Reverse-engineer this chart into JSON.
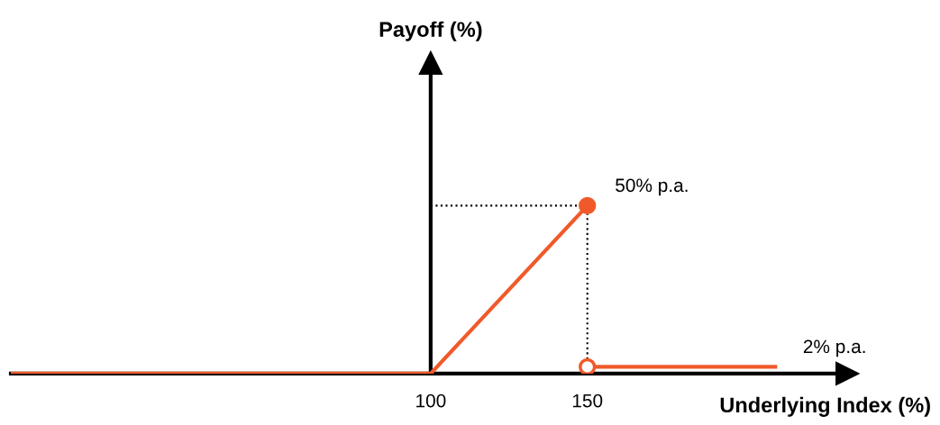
{
  "chart_data": {
    "type": "line",
    "xlabel": "Underlying Index (%)",
    "annotations": [
      "Payoff (%)"
    ],
    "xlim": [
      -34,
      233
    ],
    "xticks": [
      100,
      150
    ],
    "tick_labels": "x",
    "grid": false,
    "legend": false,
    "ref_lines": [
      {
        "axis": "x",
        "value": 100,
        "color": "#000000",
        "line_style": "solid"
      }
    ],
    "series": [
      {
        "color": "#f05a2a",
        "x": [
          -34,
          100,
          150
        ],
        "values": [
          0,
          0,
          50
        ],
        "marker": "none",
        "line_style": "solid"
      },
      {
        "color": "#f05a2a",
        "x": [
          150,
          210
        ],
        "values": [
          2,
          2
        ],
        "marker": "none",
        "line_style": "solid",
        "value_labels": [
          null,
          "2% p.a."
        ]
      },
      {
        "color": "#000000",
        "x": [
          100,
          150,
          150
        ],
        "values": [
          50,
          50,
          0
        ],
        "marker": "none",
        "line_style": "dotted"
      },
      {
        "type": "scatter",
        "color": "#f05a2a",
        "x": [
          150
        ],
        "values": [
          50
        ],
        "marker": "circle",
        "value_labels": [
          "50% p.a."
        ]
      },
      {
        "type": "scatter",
        "color": "#f05a2a",
        "colors": [
          "#ffffff"
        ],
        "x": [
          150
        ],
        "values": [
          2
        ],
        "marker": "circle"
      }
    ]
  }
}
